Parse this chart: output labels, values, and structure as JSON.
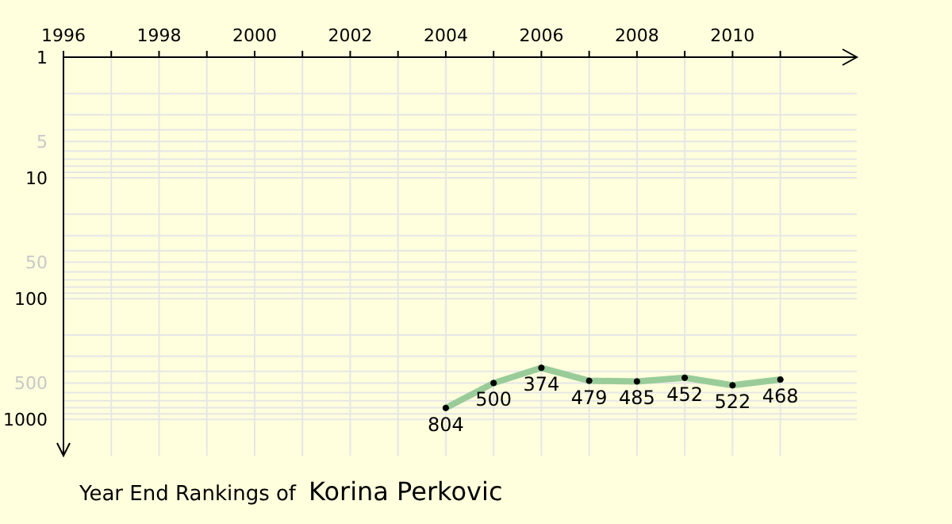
{
  "chart_data": {
    "type": "line",
    "title": "Year End Rankings of",
    "subtitle": "Korina Perkovic",
    "x": [
      2004,
      2005,
      2006,
      2007,
      2008,
      2009,
      2010,
      2011
    ],
    "series": [
      {
        "color": "#99cc99",
        "values": [
          804,
          500,
          374,
          479,
          485,
          452,
          522,
          468
        ]
      }
    ],
    "xlim": [
      1996,
      2012.6
    ],
    "xticks": [
      1996,
      {
        "value": 1997,
        "label": null
      },
      1998,
      {
        "value": 1999,
        "label": null
      },
      2000,
      {
        "value": 2001,
        "label": null
      },
      2002,
      {
        "value": 2003,
        "label": null
      },
      2004,
      {
        "value": 2005,
        "label": null
      },
      2006,
      {
        "value": 2007,
        "label": null
      },
      2008,
      {
        "value": 2009,
        "label": null
      },
      2010,
      {
        "value": 2011,
        "label": null
      }
    ],
    "ylim": [
      2000,
      1
    ],
    "yticks": [
      1,
      {
        "value": 2,
        "label": null
      },
      {
        "value": 3,
        "label": null
      },
      {
        "value": 4,
        "label": null
      },
      5,
      {
        "value": 6,
        "label": null
      },
      {
        "value": 7,
        "label": null
      },
      {
        "value": 8,
        "label": null
      },
      {
        "value": 9,
        "label": null
      },
      10,
      {
        "value": 20,
        "label": null
      },
      {
        "value": 30,
        "label": null
      },
      {
        "value": 40,
        "label": null
      },
      50,
      {
        "value": 60,
        "label": null
      },
      {
        "value": 70,
        "label": null
      },
      {
        "value": 80,
        "label": null
      },
      {
        "value": 90,
        "label": null
      },
      100,
      {
        "value": 200,
        "label": null
      },
      {
        "value": 300,
        "label": null
      },
      {
        "value": 400,
        "label": null
      },
      500,
      {
        "value": 600,
        "label": null
      },
      {
        "value": 700,
        "label": null
      },
      {
        "value": 800,
        "label": null
      },
      {
        "value": 900,
        "label": null
      },
      1000
    ],
    "log": "y",
    "grid": true,
    "marker": "circle",
    "line_style": "solid",
    "data_labels": true
  }
}
